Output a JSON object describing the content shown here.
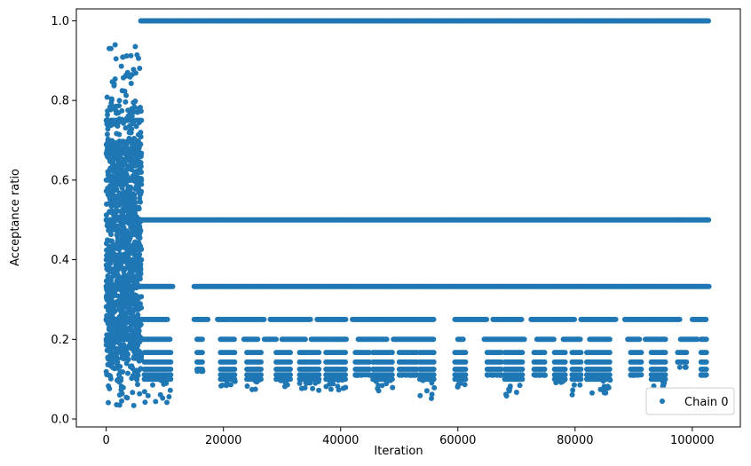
{
  "chart_data": {
    "type": "scatter",
    "title": "",
    "xlabel": "Iteration",
    "ylabel": "Acceptance ratio",
    "xlim": [
      -5100,
      108200
    ],
    "ylim": [
      -0.02,
      1.03
    ],
    "xticks": [
      0,
      20000,
      40000,
      60000,
      80000,
      100000
    ],
    "xtick_labels": [
      "0",
      "20000",
      "40000",
      "60000",
      "80000",
      "100000"
    ],
    "yticks": [
      0.0,
      0.2,
      0.4,
      0.6,
      0.8,
      1.0
    ],
    "ytick_labels": [
      "0.0",
      "0.2",
      "0.4",
      "0.6",
      "0.8",
      "1.0"
    ],
    "grid": false,
    "legend_position": "bottom-right",
    "color": "#1f77b4",
    "series": [
      {
        "name": "Chain 0",
        "x_range": [
          0,
          102900
        ],
        "burn_in_end": 6000,
        "burn_in_y_range": [
          0.03,
          0.94
        ],
        "levels": [
          1.0,
          0.5,
          0.333,
          0.25,
          0.2,
          0.167,
          0.143,
          0.125,
          0.111,
          0.1
        ],
        "level_segments": [
          {
            "y": 1.0,
            "segments": [
              [
                5900,
                102900
              ]
            ]
          },
          {
            "y": 0.5,
            "segments": [
              [
                0,
                102900
              ]
            ]
          },
          {
            "y": 0.333,
            "segments": [
              [
                0,
                11500
              ],
              [
                15000,
                102900
              ]
            ]
          },
          {
            "y": 0.25,
            "segments": [
              [
                0,
                10500
              ],
              [
                15000,
                17500
              ],
              [
                19000,
                27000
              ],
              [
                28000,
                35000
              ],
              [
                36000,
                41000
              ],
              [
                42000,
                56000
              ],
              [
                59500,
                65000
              ],
              [
                66000,
                71000
              ],
              [
                72500,
                80000
              ],
              [
                81000,
                87000
              ],
              [
                88500,
                98000
              ],
              [
                100000,
                102500
              ]
            ]
          },
          {
            "y": 0.2,
            "segments": [
              [
                6000,
                11000
              ],
              [
                15500,
                16500
              ],
              [
                19500,
                22000
              ],
              [
                23500,
                26000
              ],
              [
                27000,
                29000
              ],
              [
                30000,
                34000
              ],
              [
                35000,
                41000
              ],
              [
                43000,
                48000
              ],
              [
                49000,
                56000
              ],
              [
                60000,
                61000
              ],
              [
                64500,
                71500
              ],
              [
                73500,
                76500
              ],
              [
                78000,
                81000
              ],
              [
                82500,
                86000
              ],
              [
                89000,
                91000
              ],
              [
                92000,
                95500
              ],
              [
                98000,
                101000
              ],
              [
                101500,
                102500
              ]
            ]
          }
        ],
        "clusters": [
          {
            "x": [
              6500,
              11000
            ],
            "ymin": 0.04
          },
          {
            "x": [
              15500,
              16500
            ],
            "ymin": 0.12
          },
          {
            "x": [
              19500,
              22000
            ],
            "ymin": 0.08
          },
          {
            "x": [
              24000,
              26500
            ],
            "ymin": 0.07
          },
          {
            "x": [
              29000,
              31500
            ],
            "ymin": 0.08
          },
          {
            "x": [
              33000,
              36500
            ],
            "ymin": 0.07
          },
          {
            "x": [
              37500,
              41000
            ],
            "ymin": 0.06
          },
          {
            "x": [
              42500,
              45000
            ],
            "ymin": 0.11
          },
          {
            "x": [
              45500,
              49000
            ],
            "ymin": 0.07
          },
          {
            "x": [
              50000,
              53000
            ],
            "ymin": 0.11
          },
          {
            "x": [
              53500,
              56000
            ],
            "ymin": 0.05
          },
          {
            "x": [
              59500,
              61500
            ],
            "ymin": 0.08
          },
          {
            "x": [
              65000,
              67500
            ],
            "ymin": 0.11
          },
          {
            "x": [
              68000,
              71000
            ],
            "ymin": 0.05
          },
          {
            "x": [
              73000,
              75000
            ],
            "ymin": 0.11
          },
          {
            "x": [
              76500,
              78500
            ],
            "ymin": 0.09
          },
          {
            "x": [
              79500,
              81000
            ],
            "ymin": 0.05
          },
          {
            "x": [
              82000,
              86000
            ],
            "ymin": 0.06
          },
          {
            "x": [
              89500,
              91500
            ],
            "ymin": 0.11
          },
          {
            "x": [
              93000,
              95500
            ],
            "ymin": 0.08
          },
          {
            "x": [
              97500,
              99000
            ],
            "ymin": 0.13
          },
          {
            "x": [
              101500,
              102500
            ],
            "ymin": 0.11
          }
        ]
      }
    ]
  }
}
